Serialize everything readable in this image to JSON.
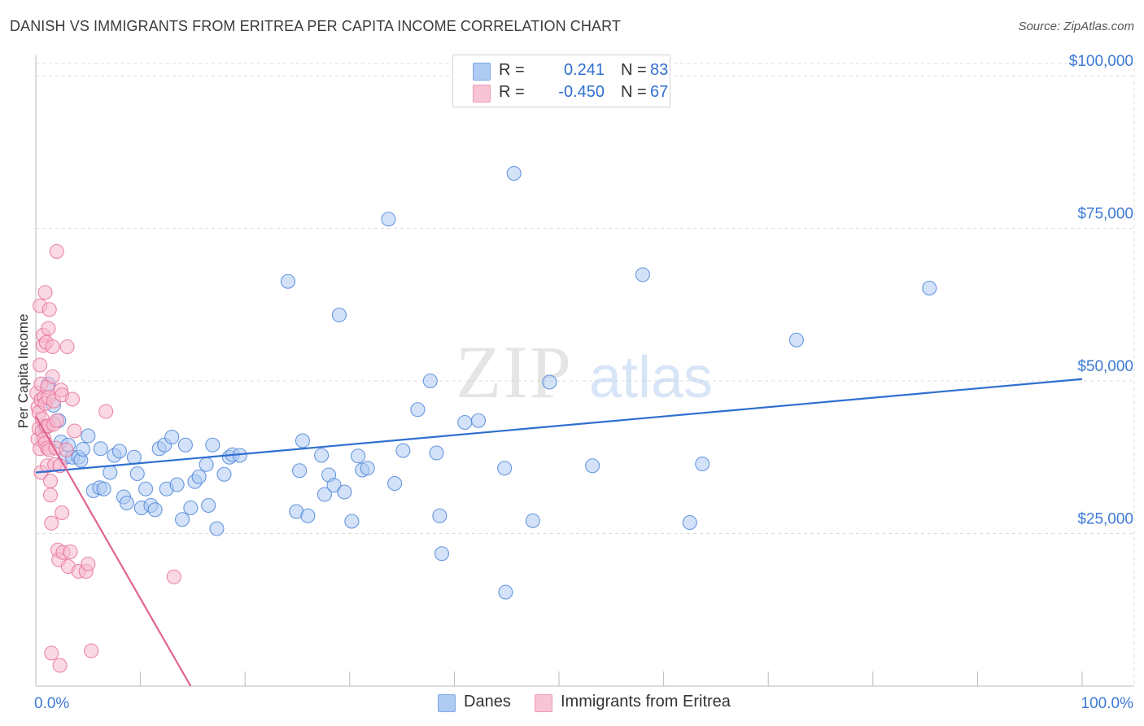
{
  "title": "DANISH VS IMMIGRANTS FROM ERITREA PER CAPITA INCOME CORRELATION CHART",
  "source": "Source: ZipAtlas.com",
  "watermark": {
    "zip": "ZIP",
    "atlas": "atlas"
  },
  "colors": {
    "blue": "#4f86d9",
    "blue_fill": "#aecbf2",
    "blue_line": "#2f6fd0",
    "pink": "#e8729b",
    "pink_fill": "#f7b9cd",
    "pink_line": "#e0648f",
    "tick_text": "#3d7bd4",
    "grid": "#dddddd"
  },
  "legend": {
    "rows": [
      {
        "r_label": "R =",
        "r_value": "0.241",
        "n_label": "N =",
        "n_value": "83",
        "color": "#aecbf2",
        "border": "#7ea9e6"
      },
      {
        "r_label": "R =",
        "r_value": "-0.450",
        "n_label": "N =",
        "n_value": "67",
        "color": "#f7c4d5",
        "border": "#ef99b6"
      }
    ]
  },
  "bottom_legend": [
    {
      "label": "Danes",
      "color": "#aecbf2",
      "border": "#7ea9e6"
    },
    {
      "label": "Immigrants from Eritrea",
      "color": "#f7c4d5",
      "border": "#ef99b6"
    }
  ],
  "chart_data": {
    "type": "scatter",
    "xlabel": "",
    "ylabel": "Per Capita Income",
    "xlim": [
      0,
      100
    ],
    "ylim": [
      0,
      102000
    ],
    "x_tick_labels": [
      {
        "value": 0,
        "label": "0.0%"
      },
      {
        "value": 100,
        "label": "100.0%"
      }
    ],
    "y_ticks": [
      {
        "value": 25000,
        "label": "$25,000"
      },
      {
        "value": 50000,
        "label": "$50,000"
      },
      {
        "value": 75000,
        "label": "$75,000"
      },
      {
        "value": 100000,
        "label": "$100,000"
      }
    ],
    "grid": true,
    "series": [
      {
        "name": "Danes",
        "trend": {
          "x": [
            0,
            100
          ],
          "y": [
            35000,
            50300
          ]
        },
        "points": [
          [
            0.9,
            42500
          ],
          [
            1.2,
            49500
          ],
          [
            1.7,
            46000
          ],
          [
            2.2,
            43500
          ],
          [
            2.4,
            40000
          ],
          [
            2.8,
            37500
          ],
          [
            3.1,
            39500
          ],
          [
            3.5,
            37500
          ],
          [
            4.1,
            37500
          ],
          [
            4.3,
            37000
          ],
          [
            4.5,
            38800
          ],
          [
            5.0,
            41000
          ],
          [
            5.5,
            32000
          ],
          [
            6.1,
            32500
          ],
          [
            6.2,
            38900
          ],
          [
            6.5,
            32300
          ],
          [
            7.1,
            35000
          ],
          [
            7.5,
            37800
          ],
          [
            8.0,
            38500
          ],
          [
            8.4,
            31000
          ],
          [
            8.7,
            30000
          ],
          [
            9.4,
            37500
          ],
          [
            9.7,
            34800
          ],
          [
            10.1,
            29200
          ],
          [
            10.5,
            32300
          ],
          [
            11.0,
            29600
          ],
          [
            11.4,
            28900
          ],
          [
            11.8,
            38900
          ],
          [
            12.3,
            39500
          ],
          [
            12.5,
            32300
          ],
          [
            13.0,
            40800
          ],
          [
            13.5,
            33000
          ],
          [
            14.0,
            27300
          ],
          [
            14.3,
            39500
          ],
          [
            14.8,
            29200
          ],
          [
            15.2,
            33500
          ],
          [
            15.6,
            34300
          ],
          [
            16.3,
            36300
          ],
          [
            16.5,
            29600
          ],
          [
            16.9,
            39500
          ],
          [
            17.3,
            25800
          ],
          [
            18.0,
            34700
          ],
          [
            18.5,
            37500
          ],
          [
            18.8,
            37900
          ],
          [
            19.5,
            37800
          ],
          [
            24.1,
            66300
          ],
          [
            24.9,
            28600
          ],
          [
            25.2,
            35300
          ],
          [
            25.5,
            40200
          ],
          [
            26.0,
            27900
          ],
          [
            27.3,
            37800
          ],
          [
            27.6,
            31400
          ],
          [
            28.0,
            34600
          ],
          [
            28.5,
            32900
          ],
          [
            29.0,
            60800
          ],
          [
            29.5,
            31800
          ],
          [
            30.2,
            27000
          ],
          [
            30.8,
            37700
          ],
          [
            31.2,
            35400
          ],
          [
            31.7,
            35700
          ],
          [
            33.7,
            76500
          ],
          [
            34.3,
            33200
          ],
          [
            35.1,
            38600
          ],
          [
            36.5,
            45300
          ],
          [
            37.7,
            50000
          ],
          [
            38.3,
            38200
          ],
          [
            38.6,
            27900
          ],
          [
            38.8,
            21700
          ],
          [
            41.0,
            43200
          ],
          [
            42.3,
            43500
          ],
          [
            44.8,
            35700
          ],
          [
            44.9,
            15400
          ],
          [
            45.7,
            84000
          ],
          [
            47.5,
            27100
          ],
          [
            49.1,
            49800
          ],
          [
            53.2,
            36100
          ],
          [
            58.0,
            67400
          ],
          [
            62.5,
            26800
          ],
          [
            63.7,
            36400
          ],
          [
            72.7,
            56700
          ],
          [
            85.4,
            65200
          ]
        ]
      },
      {
        "name": "Immigrants from Eritrea",
        "trend": {
          "x": [
            0,
            14.8
          ],
          "y": [
            44200,
            0
          ]
        },
        "points": [
          [
            0.1,
            48000
          ],
          [
            0.2,
            40500
          ],
          [
            0.2,
            45700
          ],
          [
            0.3,
            44800
          ],
          [
            0.3,
            42200
          ],
          [
            0.4,
            52600
          ],
          [
            0.4,
            62300
          ],
          [
            0.4,
            38900
          ],
          [
            0.5,
            49500
          ],
          [
            0.5,
            46900
          ],
          [
            0.5,
            35000
          ],
          [
            0.6,
            43800
          ],
          [
            0.6,
            41800
          ],
          [
            0.7,
            57500
          ],
          [
            0.7,
            55800
          ],
          [
            0.8,
            47300
          ],
          [
            0.8,
            40500
          ],
          [
            0.9,
            64500
          ],
          [
            0.9,
            46300
          ],
          [
            0.9,
            39800
          ],
          [
            1.0,
            42600
          ],
          [
            1.0,
            56300
          ],
          [
            1.1,
            49000
          ],
          [
            1.1,
            39000
          ],
          [
            1.1,
            36100
          ],
          [
            1.2,
            58600
          ],
          [
            1.2,
            47300
          ],
          [
            1.2,
            42600
          ],
          [
            1.3,
            61700
          ],
          [
            1.3,
            38700
          ],
          [
            1.4,
            33600
          ],
          [
            1.4,
            31300
          ],
          [
            1.5,
            26700
          ],
          [
            1.5,
            5400
          ],
          [
            1.6,
            50700
          ],
          [
            1.6,
            55600
          ],
          [
            1.7,
            46700
          ],
          [
            1.7,
            42900
          ],
          [
            1.8,
            36300
          ],
          [
            1.9,
            39000
          ],
          [
            2.0,
            71200
          ],
          [
            2.0,
            43500
          ],
          [
            2.1,
            22300
          ],
          [
            2.2,
            20700
          ],
          [
            2.3,
            3400
          ],
          [
            2.3,
            36100
          ],
          [
            2.4,
            48500
          ],
          [
            2.5,
            47700
          ],
          [
            2.5,
            28400
          ],
          [
            2.6,
            21900
          ],
          [
            2.9,
            38700
          ],
          [
            3.0,
            55600
          ],
          [
            3.1,
            19600
          ],
          [
            3.3,
            22000
          ],
          [
            3.5,
            47000
          ],
          [
            3.7,
            41800
          ],
          [
            4.1,
            18800
          ],
          [
            4.8,
            18800
          ],
          [
            5.0,
            20000
          ],
          [
            5.3,
            5800
          ],
          [
            6.7,
            45000
          ],
          [
            13.2,
            17900
          ]
        ]
      }
    ]
  }
}
